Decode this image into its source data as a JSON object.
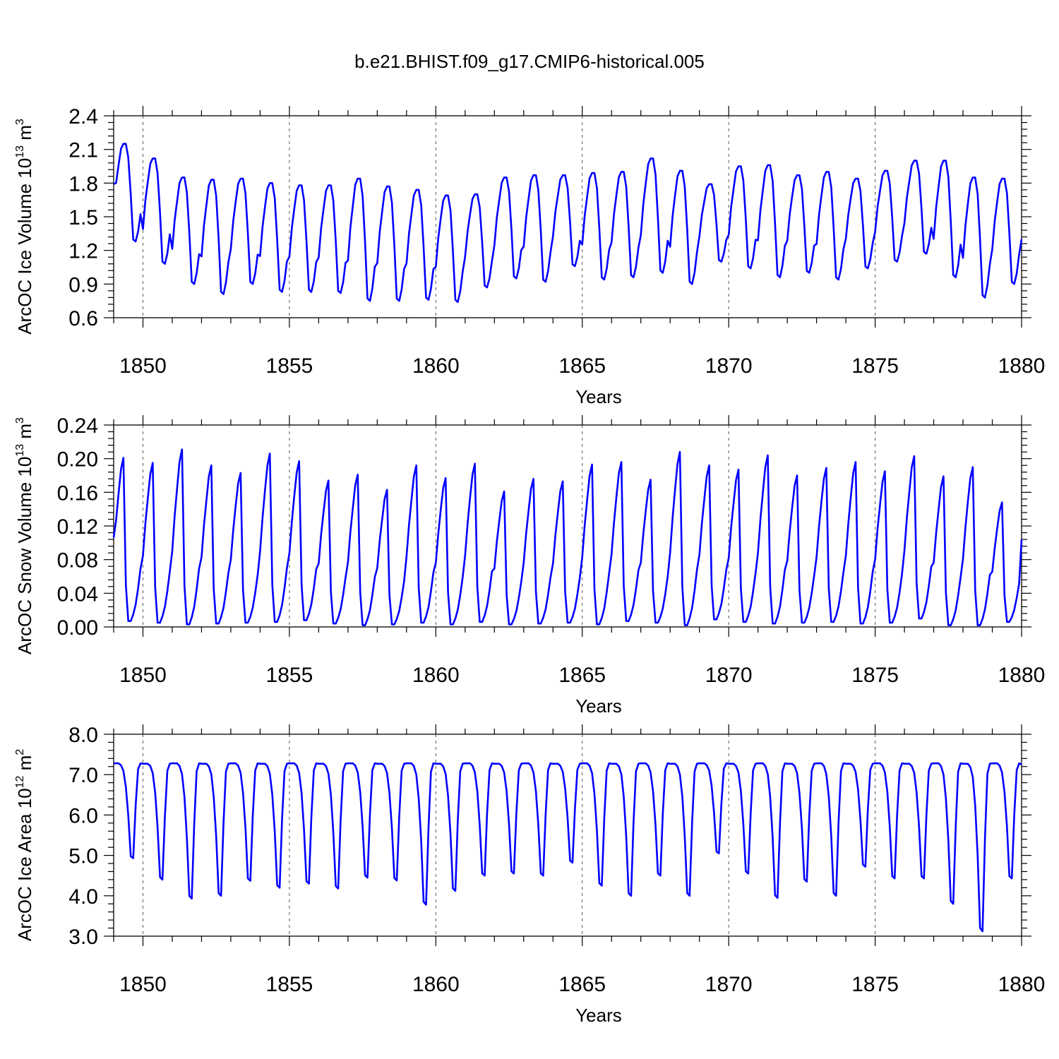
{
  "title": "b.e21.BHIST.f09_g17.CMIP6-historical.005",
  "colors": {
    "line": "#0000ff",
    "axis": "#000000",
    "grid": "#555555"
  },
  "chart_data": [
    {
      "type": "line",
      "name": "ice-volume",
      "ylabel": {
        "main": "ArcOC Ice Volume 10",
        "sup": "13",
        "unit": " m",
        "unit_sup": "3"
      },
      "xlabel": "Years",
      "xlim": [
        1849.0,
        1880.0
      ],
      "ylim": [
        0.6,
        2.4
      ],
      "yticks": [
        "0.6",
        "0.9",
        "1.2",
        "1.5",
        "1.8",
        "2.1",
        "2.4"
      ],
      "xticks": [
        "1850",
        "1855",
        "1860",
        "1865",
        "1870",
        "1875",
        "1880"
      ],
      "yearly_max": [
        2.15,
        2.02,
        1.85,
        1.83,
        1.84,
        1.8,
        1.78,
        1.78,
        1.84,
        1.77,
        1.74,
        1.69,
        1.7,
        1.85,
        1.87,
        1.87,
        1.89,
        1.9,
        2.02,
        1.91,
        1.79,
        1.95,
        1.96,
        1.87,
        1.9,
        1.84,
        1.91,
        2.0,
        2.0,
        1.85,
        1.84
      ],
      "yearly_min": [
        1.28,
        1.08,
        0.9,
        0.81,
        0.9,
        0.83,
        0.83,
        0.82,
        0.75,
        0.75,
        0.76,
        0.74,
        0.87,
        0.95,
        0.92,
        1.06,
        0.94,
        0.96,
        1.0,
        0.9,
        1.1,
        1.04,
        0.96,
        1.0,
        0.94,
        1.04,
        1.1,
        1.17,
        0.96,
        0.78,
        0.9
      ],
      "start_value": 1.79,
      "end_value": 1.3
    },
    {
      "type": "line",
      "name": "snow-volume",
      "ylabel": {
        "main": "ArcOC Snow Volume 10",
        "sup": "13",
        "unit": " m",
        "unit_sup": "3"
      },
      "xlabel": "Years",
      "xlim": [
        1849.0,
        1880.0
      ],
      "ylim": [
        0.0,
        0.24
      ],
      "yticks": [
        "0.00",
        "0.04",
        "0.08",
        "0.12",
        "0.16",
        "0.20",
        "0.24"
      ],
      "xticks": [
        "1850",
        "1855",
        "1860",
        "1865",
        "1870",
        "1875",
        "1880"
      ],
      "yearly_max": [
        0.201,
        0.195,
        0.211,
        0.192,
        0.183,
        0.206,
        0.197,
        0.174,
        0.181,
        0.163,
        0.192,
        0.177,
        0.194,
        0.161,
        0.176,
        0.173,
        0.193,
        0.196,
        0.175,
        0.208,
        0.192,
        0.187,
        0.204,
        0.18,
        0.189,
        0.196,
        0.185,
        0.203,
        0.179,
        0.19,
        0.148
      ],
      "yearly_min": [
        0.007,
        0.005,
        0.003,
        0.004,
        0.005,
        0.006,
        0.008,
        0.004,
        0.002,
        0.003,
        0.005,
        0.003,
        0.006,
        0.003,
        0.004,
        0.005,
        0.003,
        0.007,
        0.005,
        0.002,
        0.009,
        0.006,
        0.004,
        0.005,
        0.006,
        0.004,
        0.005,
        0.01,
        0.002,
        0.002,
        0.006
      ],
      "start_value": 0.106,
      "end_value": 0.104
    },
    {
      "type": "line",
      "name": "ice-area",
      "ylabel": {
        "main": "ArcOC Ice Area 10",
        "sup": "12",
        "unit": " m",
        "unit_sup": "2"
      },
      "xlabel": "Years",
      "xlim": [
        1849.0,
        1880.0
      ],
      "ylim": [
        3.0,
        8.0
      ],
      "yticks": [
        "3.0",
        "4.0",
        "5.0",
        "6.0",
        "7.0",
        "8.0"
      ],
      "xticks": [
        "1850",
        "1855",
        "1860",
        "1865",
        "1870",
        "1875",
        "1880"
      ],
      "yearly_max": [
        7.28,
        7.27,
        7.28,
        7.27,
        7.28,
        7.27,
        7.28,
        7.27,
        7.28,
        7.27,
        7.28,
        7.27,
        7.28,
        7.27,
        7.28,
        7.27,
        7.28,
        7.27,
        7.28,
        7.27,
        7.28,
        7.27,
        7.28,
        7.27,
        7.28,
        7.27,
        7.28,
        7.27,
        7.28,
        7.27,
        7.28
      ],
      "yearly_min": [
        4.93,
        4.4,
        3.93,
        4.0,
        4.37,
        4.2,
        4.3,
        4.18,
        4.45,
        4.38,
        3.78,
        4.12,
        4.5,
        4.55,
        4.5,
        4.82,
        4.25,
        4.0,
        4.5,
        4.0,
        5.05,
        4.55,
        3.95,
        4.35,
        4.0,
        4.72,
        4.43,
        4.43,
        3.8,
        3.12,
        4.43
      ],
      "start_value": 7.28,
      "end_value": 7.25
    }
  ]
}
